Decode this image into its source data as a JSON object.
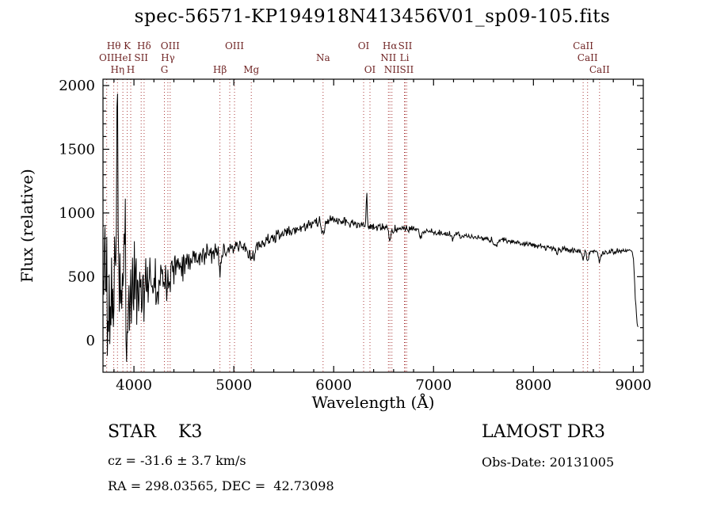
{
  "footer": {
    "class_line": "STAR    K3",
    "cz_line": "cz = -31.6 ± 3.7 km/s",
    "radec_line": "RA = 298.03565, DEC =  42.73098",
    "survey_line": "LAMOST DR3",
    "obsdate_line": "Obs-Date: 20131005"
  },
  "colors": {
    "trace": "#000000",
    "marker_line": "#aa3b3b",
    "marker_label": "#702525",
    "axis": "#000000"
  },
  "chart_data": {
    "type": "line",
    "title": "spec-56571-KP194918N413456V01_sp09-105.fits",
    "xlabel": "Wavelength (Å)",
    "ylabel": "Flux (relative)",
    "series_name": "flux",
    "xlim": [
      3690,
      9100
    ],
    "ylim": [
      -250,
      2050
    ],
    "xticks": [
      4000,
      5000,
      6000,
      7000,
      8000,
      9000
    ],
    "yticks": [
      0,
      500,
      1000,
      1500,
      2000
    ],
    "x_minor_step": 200,
    "y_minor_step": 100,
    "x_start": 3692,
    "x_end": 9052,
    "sample_step": 6,
    "seed": 11,
    "continuum": [
      [
        3690,
        340
      ],
      [
        3720,
        360
      ],
      [
        3760,
        380
      ],
      [
        3800,
        390
      ],
      [
        3840,
        400
      ],
      [
        3880,
        390
      ],
      [
        3920,
        370
      ],
      [
        3960,
        390
      ],
      [
        4000,
        430
      ],
      [
        4060,
        445
      ],
      [
        4120,
        460
      ],
      [
        4180,
        480
      ],
      [
        4240,
        505
      ],
      [
        4300,
        545
      ],
      [
        4360,
        565
      ],
      [
        4420,
        590
      ],
      [
        4480,
        615
      ],
      [
        4540,
        635
      ],
      [
        4600,
        655
      ],
      [
        4660,
        660
      ],
      [
        4720,
        670
      ],
      [
        4780,
        685
      ],
      [
        4840,
        695
      ],
      [
        4900,
        700
      ],
      [
        4960,
        712
      ],
      [
        5020,
        722
      ],
      [
        5080,
        732
      ],
      [
        5140,
        732
      ],
      [
        5200,
        738
      ],
      [
        5260,
        762
      ],
      [
        5320,
        785
      ],
      [
        5380,
        800
      ],
      [
        5440,
        818
      ],
      [
        5500,
        840
      ],
      [
        5560,
        858
      ],
      [
        5620,
        868
      ],
      [
        5680,
        885
      ],
      [
        5740,
        900
      ],
      [
        5800,
        920
      ],
      [
        5860,
        926
      ],
      [
        5920,
        935
      ],
      [
        5980,
        948
      ],
      [
        6040,
        945
      ],
      [
        6100,
        932
      ],
      [
        6160,
        920
      ],
      [
        6220,
        912
      ],
      [
        6280,
        902
      ],
      [
        6340,
        896
      ],
      [
        6400,
        890
      ],
      [
        6460,
        888
      ],
      [
        6520,
        880
      ],
      [
        6580,
        872
      ],
      [
        6640,
        875
      ],
      [
        6700,
        880
      ],
      [
        6760,
        874
      ],
      [
        6820,
        868
      ],
      [
        6880,
        862
      ],
      [
        6940,
        857
      ],
      [
        7000,
        850
      ],
      [
        7100,
        840
      ],
      [
        7200,
        830
      ],
      [
        7300,
        820
      ],
      [
        7400,
        810
      ],
      [
        7500,
        798
      ],
      [
        7600,
        785
      ],
      [
        7700,
        790
      ],
      [
        7800,
        775
      ],
      [
        7900,
        763
      ],
      [
        8000,
        750
      ],
      [
        8100,
        735
      ],
      [
        8200,
        722
      ],
      [
        8300,
        710
      ],
      [
        8400,
        705
      ],
      [
        8500,
        700
      ],
      [
        8600,
        694
      ],
      [
        8700,
        690
      ],
      [
        8800,
        692
      ],
      [
        8900,
        700
      ],
      [
        8950,
        708
      ],
      [
        8990,
        698
      ],
      [
        9005,
        600
      ],
      [
        9020,
        320
      ],
      [
        9040,
        130
      ],
      [
        9055,
        105
      ]
    ],
    "noise_sigma": [
      [
        3690,
        310
      ],
      [
        3760,
        315
      ],
      [
        3820,
        300
      ],
      [
        3880,
        255
      ],
      [
        3940,
        215
      ],
      [
        4000,
        165
      ],
      [
        4060,
        140
      ],
      [
        4120,
        120
      ],
      [
        4200,
        95
      ],
      [
        4300,
        75
      ],
      [
        4400,
        62
      ],
      [
        4500,
        52
      ],
      [
        4600,
        46
      ],
      [
        4800,
        38
      ],
      [
        5000,
        30
      ],
      [
        5200,
        26
      ],
      [
        5500,
        22
      ],
      [
        5800,
        20
      ],
      [
        6100,
        17
      ],
      [
        6400,
        15
      ],
      [
        6700,
        14
      ],
      [
        7000,
        13
      ],
      [
        7500,
        12
      ],
      [
        8000,
        12
      ],
      [
        8500,
        12
      ],
      [
        8800,
        11
      ],
      [
        9000,
        9
      ],
      [
        9055,
        7
      ]
    ],
    "features": [
      {
        "center": 3712,
        "width": 5,
        "amp": 620
      },
      {
        "center": 3745,
        "width": 6,
        "amp": -430
      },
      {
        "center": 3830,
        "width": 7,
        "amp": 1480
      },
      {
        "center": 3905,
        "width": 6,
        "amp": 540
      },
      {
        "center": 3933,
        "width": 8,
        "amp": -260
      },
      {
        "center": 4102,
        "width": 9,
        "amp": -150
      },
      {
        "center": 4227,
        "width": 8,
        "amp": -90
      },
      {
        "center": 4305,
        "width": 11,
        "amp": -95
      },
      {
        "center": 4340,
        "width": 9,
        "amp": -105
      },
      {
        "center": 4861,
        "width": 9,
        "amp": -120
      },
      {
        "center": 5175,
        "width": 28,
        "amp": -85
      },
      {
        "center": 5270,
        "width": 10,
        "amp": -50
      },
      {
        "center": 5894,
        "width": 13,
        "amp": -110
      },
      {
        "center": 6330,
        "width": 5,
        "amp": 285
      },
      {
        "center": 6563,
        "width": 9,
        "amp": -100
      },
      {
        "center": 6870,
        "width": 14,
        "amp": -45
      },
      {
        "center": 7190,
        "width": 14,
        "amp": -35
      },
      {
        "center": 7620,
        "width": 18,
        "amp": -45
      },
      {
        "center": 8230,
        "width": 12,
        "amp": -35
      },
      {
        "center": 8498,
        "width": 8,
        "amp": -65
      },
      {
        "center": 8542,
        "width": 9,
        "amp": -78
      },
      {
        "center": 8662,
        "width": 9,
        "amp": -70
      }
    ],
    "spectral_lines": [
      {
        "wavelength": 3727,
        "label": "OII",
        "row": 2
      },
      {
        "wavelength": 3798,
        "label": "Hθ",
        "row": 1
      },
      {
        "wavelength": 3835,
        "label": "Hη",
        "row": 3
      },
      {
        "wavelength": 3889,
        "label": "HeI",
        "row": 2
      },
      {
        "wavelength": 3933,
        "label": "K",
        "row": 1
      },
      {
        "wavelength": 3968,
        "label": "H",
        "row": 3
      },
      {
        "wavelength": 4072,
        "label": "SII",
        "row": 2
      },
      {
        "wavelength": 4102,
        "label": "Hδ",
        "row": 1
      },
      {
        "wavelength": 4305,
        "label": "G",
        "row": 3
      },
      {
        "wavelength": 4340,
        "label": "Hγ",
        "row": 2
      },
      {
        "wavelength": 4363,
        "label": "OIII",
        "row": 1
      },
      {
        "wavelength": 4861,
        "label": "Hβ",
        "row": 3
      },
      {
        "wavelength": 4959,
        "label": "",
        "row": 2
      },
      {
        "wavelength": 5007,
        "label": "OIII",
        "row": 1
      },
      {
        "wavelength": 5175,
        "label": "Mg",
        "row": 3
      },
      {
        "wavelength": 5894,
        "label": "Na",
        "row": 2
      },
      {
        "wavelength": 6300,
        "label": "OI",
        "row": 1
      },
      {
        "wavelength": 6363,
        "label": "OI",
        "row": 3
      },
      {
        "wavelength": 6548,
        "label": "NII",
        "row": 2
      },
      {
        "wavelength": 6563,
        "label": "Hα",
        "row": 1
      },
      {
        "wavelength": 6583,
        "label": "NII",
        "row": 3
      },
      {
        "wavelength": 6708,
        "label": "Li",
        "row": 2
      },
      {
        "wavelength": 6716,
        "label": "SII",
        "row": 1
      },
      {
        "wavelength": 6731,
        "label": "SII",
        "row": 3
      },
      {
        "wavelength": 8498,
        "label": "CaII",
        "row": 1
      },
      {
        "wavelength": 8542,
        "label": "CaII",
        "row": 2
      },
      {
        "wavelength": 8662,
        "label": "CaII",
        "row": 3
      }
    ]
  }
}
